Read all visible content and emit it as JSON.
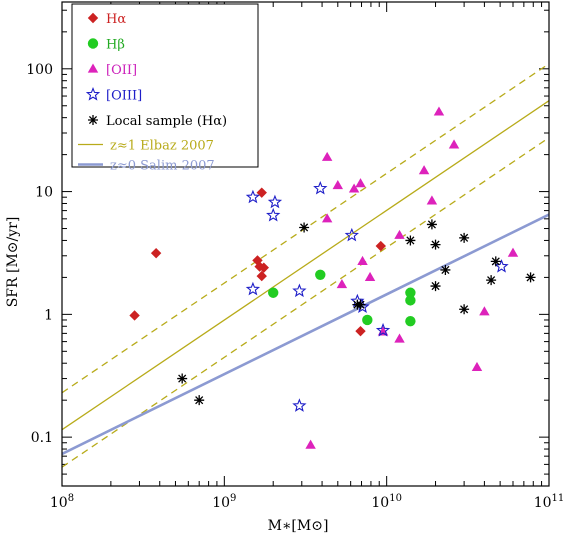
{
  "chart_data": {
    "type": "scatter",
    "title": "",
    "xlabel": "M∗[M⊙]",
    "ylabel": "SFR   [M⊙/yr]",
    "xscale": "log",
    "yscale": "log",
    "xlim": [
      100000000.0,
      100000000000.0
    ],
    "ylim": [
      0.04,
      350
    ],
    "x_tick_labels": [
      {
        "value": 100000000.0,
        "base": "10",
        "exp": "8"
      },
      {
        "value": 1000000000.0,
        "base": "10",
        "exp": "9"
      },
      {
        "value": 10000000000.0,
        "base": "10",
        "exp": "10"
      },
      {
        "value": 100000000000.0,
        "base": "10",
        "exp": "11"
      }
    ],
    "y_tick_labels": [
      {
        "value": 100,
        "label": "100"
      },
      {
        "value": 10,
        "label": "10"
      },
      {
        "value": 1,
        "label": "1"
      },
      {
        "value": 0.1,
        "label": "0.1"
      }
    ],
    "legend_position": "top-left",
    "series": [
      {
        "name": "Hα",
        "marker": "diamond",
        "color": "#cc2222",
        "points": [
          [
            280000000.0,
            0.98
          ],
          [
            380000000.0,
            3.15
          ],
          [
            1600000000.0,
            2.75
          ],
          [
            1650000000.0,
            2.45
          ],
          [
            1700000000.0,
            9.8
          ],
          [
            1750000000.0,
            2.4
          ],
          [
            1700000000.0,
            2.05
          ],
          [
            9200000000.0,
            3.6
          ],
          [
            6900000000.0,
            0.73
          ]
        ]
      },
      {
        "name": "Hβ",
        "marker": "circle",
        "color": "#22cc22",
        "points": [
          [
            2000000000.0,
            1.5
          ],
          [
            3900000000.0,
            2.1
          ],
          [
            7600000000.0,
            0.9
          ],
          [
            14000000000.0,
            1.5
          ],
          [
            14000000000.0,
            1.3
          ],
          [
            14000000000.0,
            0.88
          ]
        ]
      },
      {
        "name": "[OII]",
        "marker": "triangle",
        "color": "#dd22bb",
        "points": [
          [
            4300000000.0,
            19
          ],
          [
            4300000000.0,
            6.0
          ],
          [
            5000000000.0,
            11.2
          ],
          [
            6300000000.0,
            10.5
          ],
          [
            6900000000.0,
            11.6
          ],
          [
            7100000000.0,
            2.7
          ],
          [
            5300000000.0,
            1.75
          ],
          [
            7900000000.0,
            2.0
          ],
          [
            9500000000.0,
            0.72
          ],
          [
            12000000000.0,
            4.4
          ],
          [
            12000000000.0,
            0.63
          ],
          [
            17000000000.0,
            14.8
          ],
          [
            19000000000.0,
            8.4
          ],
          [
            21000000000.0,
            44.5
          ],
          [
            26000000000.0,
            24
          ],
          [
            36000000000.0,
            0.37
          ],
          [
            40000000000.0,
            1.05
          ],
          [
            60000000000.0,
            3.15
          ],
          [
            3400000000.0,
            0.086
          ]
        ]
      },
      {
        "name": "[OIII]",
        "marker": "star",
        "color": "#1e1ec8",
        "points": [
          [
            1500000000.0,
            9.0
          ],
          [
            1500000000.0,
            1.6
          ],
          [
            2000000000.0,
            6.4
          ],
          [
            2050000000.0,
            8.2
          ],
          [
            2900000000.0,
            1.55
          ],
          [
            3900000000.0,
            10.6
          ],
          [
            6100000000.0,
            4.4
          ],
          [
            6600000000.0,
            1.28
          ],
          [
            7100000000.0,
            1.15
          ],
          [
            9500000000.0,
            0.74
          ],
          [
            51000000000.0,
            2.45
          ],
          [
            2900000000.0,
            0.18
          ]
        ]
      },
      {
        "name": "Local sample (Hα)",
        "marker": "asterisk",
        "color": "#000000",
        "points": [
          [
            550000000.0,
            0.3
          ],
          [
            700000000.0,
            0.2
          ],
          [
            3100000000.0,
            5.1
          ],
          [
            6600000000.0,
            1.2
          ],
          [
            6900000000.0,
            1.2
          ],
          [
            14000000000.0,
            4.0
          ],
          [
            19000000000.0,
            5.4
          ],
          [
            20000000000.0,
            3.7
          ],
          [
            23000000000.0,
            2.3
          ],
          [
            20000000000.0,
            1.7
          ],
          [
            30000000000.0,
            4.2
          ],
          [
            30000000000.0,
            1.1
          ],
          [
            44000000000.0,
            1.9
          ],
          [
            47000000000.0,
            2.7
          ],
          [
            77000000000.0,
            2.0
          ]
        ]
      }
    ],
    "lines": [
      {
        "name": "z≈1 Elbaz 2007",
        "color": "#b8ab1a",
        "style": "solid",
        "points": [
          [
            100000000.0,
            0.115
          ],
          [
            100000000000.0,
            55
          ]
        ]
      },
      {
        "name": "",
        "color": "#b8ab1a",
        "style": "dashed",
        "points": [
          [
            100000000.0,
            0.23
          ],
          [
            100000000000.0,
            110
          ]
        ]
      },
      {
        "name": "",
        "color": "#b8ab1a",
        "style": "dashed",
        "points": [
          [
            100000000.0,
            0.057
          ],
          [
            100000000000.0,
            27.5
          ]
        ]
      },
      {
        "name": "z≈0 Salim 2007",
        "color": "#8c9ad2",
        "style": "thick",
        "points": [
          [
            100000000.0,
            0.073
          ],
          [
            100000000000.0,
            6.5
          ]
        ]
      }
    ]
  }
}
